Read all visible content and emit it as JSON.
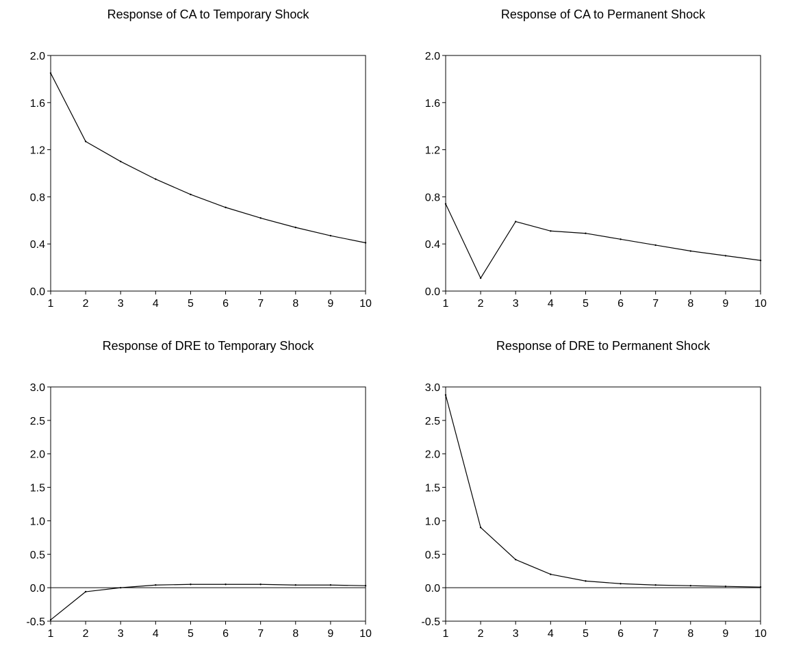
{
  "chart_data": [
    {
      "type": "line",
      "title": "Response of CA to Temporary Shock",
      "x": [
        1,
        2,
        3,
        4,
        5,
        6,
        7,
        8,
        9,
        10
      ],
      "xticks": [
        1,
        2,
        3,
        4,
        5,
        6,
        7,
        8,
        9,
        10
      ],
      "yticks": [
        "0.0",
        "0.4",
        "0.8",
        "1.2",
        "1.6",
        "2.0"
      ],
      "ylim": [
        0,
        2
      ],
      "zero_line": false,
      "series": [
        {
          "values": [
            1.85,
            1.27,
            1.1,
            0.95,
            0.82,
            0.71,
            0.62,
            0.54,
            0.47,
            0.41
          ]
        }
      ]
    },
    {
      "type": "line",
      "title": "Response of CA to Permanent Shock",
      "x": [
        1,
        2,
        3,
        4,
        5,
        6,
        7,
        8,
        9,
        10
      ],
      "xticks": [
        1,
        2,
        3,
        4,
        5,
        6,
        7,
        8,
        9,
        10
      ],
      "yticks": [
        "0.0",
        "0.4",
        "0.8",
        "1.2",
        "1.6",
        "2.0"
      ],
      "ylim": [
        0,
        2
      ],
      "zero_line": false,
      "series": [
        {
          "values": [
            0.74,
            0.11,
            0.59,
            0.51,
            0.49,
            0.44,
            0.39,
            0.34,
            0.3,
            0.26
          ]
        }
      ]
    },
    {
      "type": "line",
      "title": "Response of DRE to Temporary Shock",
      "x": [
        1,
        2,
        3,
        4,
        5,
        6,
        7,
        8,
        9,
        10
      ],
      "xticks": [
        1,
        2,
        3,
        4,
        5,
        6,
        7,
        8,
        9,
        10
      ],
      "yticks": [
        "-0.5",
        "0.0",
        "0.5",
        "1.0",
        "1.5",
        "2.0",
        "2.5",
        "3.0"
      ],
      "ylim": [
        -0.5,
        3
      ],
      "zero_line": true,
      "series": [
        {
          "values": [
            -0.48,
            -0.06,
            0.0,
            0.04,
            0.05,
            0.05,
            0.05,
            0.04,
            0.04,
            0.03
          ]
        }
      ]
    },
    {
      "type": "line",
      "title": "Response of DRE to Permanent Shock",
      "x": [
        1,
        2,
        3,
        4,
        5,
        6,
        7,
        8,
        9,
        10
      ],
      "xticks": [
        1,
        2,
        3,
        4,
        5,
        6,
        7,
        8,
        9,
        10
      ],
      "yticks": [
        "-0.5",
        "0.0",
        "0.5",
        "1.0",
        "1.5",
        "2.0",
        "2.5",
        "3.0"
      ],
      "ylim": [
        -0.5,
        3
      ],
      "zero_line": true,
      "series": [
        {
          "values": [
            2.88,
            0.9,
            0.42,
            0.2,
            0.1,
            0.06,
            0.04,
            0.03,
            0.02,
            0.01
          ]
        }
      ]
    }
  ]
}
